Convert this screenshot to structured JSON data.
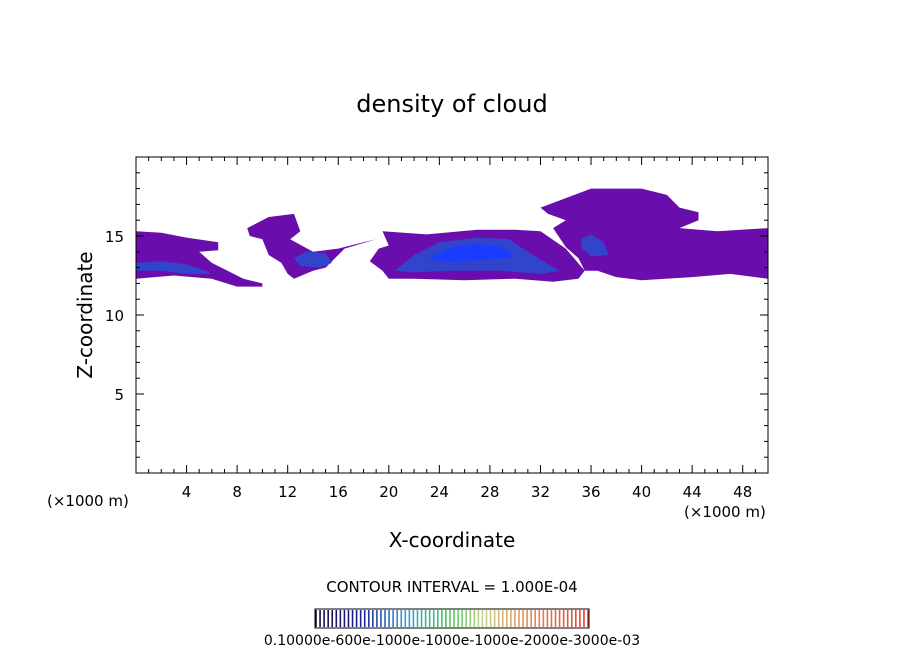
{
  "chart_data": {
    "type": "heatmap",
    "title": "density of cloud",
    "xlabel": "X-coordinate",
    "ylabel": "Z-coordinate",
    "x_unit": "(×1000 m)",
    "y_unit": "(×1000 m)",
    "xlim": [
      0,
      50
    ],
    "ylim": [
      0,
      20
    ],
    "x_ticks": [
      4,
      8,
      12,
      16,
      20,
      24,
      28,
      32,
      36,
      40,
      44,
      48
    ],
    "y_ticks": [
      5,
      10,
      15
    ],
    "contour_interval_label": "CONTOUR INTERVAL = 1.000E-04",
    "colorbar_label": "0.10000e-600e-1000e-1000e-1000e-2000e-3000e-03",
    "colors": {
      "low": "#6a0dad",
      "mid": "#3344cc",
      "high": "#1a3cff"
    },
    "regions": [
      {
        "level": "low",
        "poly": [
          [
            0,
            15.3
          ],
          [
            2,
            15.2
          ],
          [
            4,
            14.9
          ],
          [
            6.5,
            14.6
          ],
          [
            6.5,
            14.1
          ],
          [
            5,
            14
          ],
          [
            6,
            13.3
          ],
          [
            8.5,
            12.3
          ],
          [
            10,
            12
          ],
          [
            10,
            11.8
          ],
          [
            8,
            11.8
          ],
          [
            6,
            12.3
          ],
          [
            3,
            12.5
          ],
          [
            0,
            12.3
          ]
        ]
      },
      {
        "level": "mid",
        "poly": [
          [
            0,
            13.3
          ],
          [
            2,
            13.4
          ],
          [
            4,
            13.2
          ],
          [
            5.5,
            12.8
          ],
          [
            6,
            12.6
          ],
          [
            4,
            12.6
          ],
          [
            2,
            12.8
          ],
          [
            0,
            12.8
          ]
        ]
      },
      {
        "level": "low",
        "poly": [
          [
            8.8,
            15.5
          ],
          [
            10.5,
            16.2
          ],
          [
            12.5,
            16.4
          ],
          [
            13,
            15.3
          ],
          [
            12.2,
            14.8
          ],
          [
            14,
            14
          ],
          [
            16,
            14.2
          ],
          [
            18,
            14.6
          ],
          [
            19,
            14.8
          ],
          [
            16.5,
            14.2
          ],
          [
            16,
            13.8
          ],
          [
            15,
            13
          ],
          [
            14,
            12.8
          ],
          [
            12.5,
            12.3
          ],
          [
            12,
            12.6
          ],
          [
            11.5,
            13.3
          ],
          [
            10.5,
            13.8
          ],
          [
            10,
            14.8
          ],
          [
            9,
            15
          ]
        ]
      },
      {
        "level": "mid",
        "poly": [
          [
            12.5,
            13.6
          ],
          [
            13.5,
            14
          ],
          [
            15,
            13.9
          ],
          [
            15.5,
            13.3
          ],
          [
            14.5,
            13
          ],
          [
            13,
            13.1
          ]
        ]
      },
      {
        "level": "low",
        "poly": [
          [
            19.5,
            15.3
          ],
          [
            23,
            15.1
          ],
          [
            27,
            15.4
          ],
          [
            30,
            15.4
          ],
          [
            32,
            15.3
          ],
          [
            34,
            14.2
          ],
          [
            35.5,
            12.8
          ],
          [
            35,
            12.3
          ],
          [
            33,
            12.1
          ],
          [
            30,
            12.3
          ],
          [
            26,
            12.2
          ],
          [
            22,
            12.3
          ],
          [
            20,
            12.3
          ],
          [
            19.5,
            12.8
          ],
          [
            18.5,
            13.4
          ],
          [
            19.2,
            14.2
          ],
          [
            20,
            14.4
          ]
        ]
      },
      {
        "level": "mid",
        "poly": [
          [
            20.5,
            12.8
          ],
          [
            22,
            13.8
          ],
          [
            24,
            14.6
          ],
          [
            27,
            14.9
          ],
          [
            29.5,
            14.8
          ],
          [
            31,
            14
          ],
          [
            32,
            13.5
          ],
          [
            33.5,
            12.8
          ],
          [
            32,
            12.6
          ],
          [
            29,
            12.8
          ],
          [
            25,
            12.8
          ],
          [
            22,
            12.7
          ]
        ]
      },
      {
        "level": "high",
        "poly": [
          [
            23,
            13.5
          ],
          [
            25,
            14.3
          ],
          [
            27,
            14.5
          ],
          [
            29,
            14.3
          ],
          [
            30,
            13.7
          ],
          [
            28,
            13.5
          ],
          [
            25,
            13.4
          ]
        ]
      },
      {
        "level": "low",
        "poly": [
          [
            32,
            16.8
          ],
          [
            34,
            17.4
          ],
          [
            36,
            18
          ],
          [
            40,
            18
          ],
          [
            42,
            17.6
          ],
          [
            43,
            16.8
          ],
          [
            44.5,
            16.5
          ],
          [
            44.5,
            16
          ],
          [
            43,
            15.5
          ],
          [
            46,
            15.3
          ],
          [
            50,
            15.5
          ],
          [
            50,
            12.3
          ],
          [
            47,
            12.6
          ],
          [
            44,
            12.4
          ],
          [
            40,
            12.2
          ],
          [
            38,
            12.4
          ],
          [
            36.5,
            12.8
          ],
          [
            35.5,
            12.8
          ],
          [
            35,
            13.6
          ],
          [
            34,
            14.3
          ],
          [
            33,
            15.5
          ],
          [
            34,
            16
          ],
          [
            32.6,
            16.4
          ]
        ]
      },
      {
        "level": "mid",
        "poly": [
          [
            35.2,
            14.8
          ],
          [
            36,
            15.1
          ],
          [
            37,
            14.6
          ],
          [
            37.4,
            13.8
          ],
          [
            36,
            13.7
          ],
          [
            35.3,
            14.2
          ]
        ]
      }
    ]
  }
}
